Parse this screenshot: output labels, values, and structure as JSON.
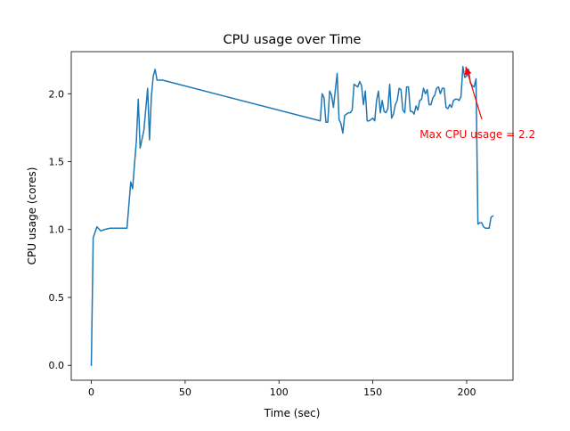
{
  "chart_data": {
    "type": "line",
    "title": "CPU usage over Time",
    "xlabel": "Time (sec)",
    "ylabel": "CPU usage (cores)",
    "xlim": [
      -10.7,
      224.7
    ],
    "ylim": [
      -0.11,
      2.31
    ],
    "x_ticks": [
      0,
      50,
      100,
      150,
      200
    ],
    "y_ticks": [
      0.0,
      0.5,
      1.0,
      1.5,
      2.0
    ],
    "x_tick_labels": [
      "0",
      "50",
      "100",
      "150",
      "200"
    ],
    "y_tick_labels": [
      "0.0",
      "0.5",
      "1.0",
      "1.5",
      "2.0"
    ],
    "grid": false,
    "series": [
      {
        "color": "#1f77b4",
        "x": [
          0,
          1,
          3,
          5,
          7,
          10,
          14,
          18,
          19,
          20,
          21,
          22,
          23,
          24,
          25,
          26,
          28,
          30,
          31,
          32,
          33,
          34,
          35,
          37,
          38,
          122,
          123,
          124,
          125,
          126,
          127,
          128,
          129,
          131,
          132,
          133,
          134,
          135,
          136,
          137,
          138,
          139,
          140,
          142,
          143,
          144,
          145,
          146,
          147,
          148,
          149,
          150,
          151,
          152,
          153,
          154,
          155,
          156,
          157,
          158,
          159,
          160,
          161,
          162,
          163,
          164,
          165,
          166,
          167,
          168,
          169,
          170,
          171,
          172,
          173,
          174,
          175,
          176,
          177,
          178,
          179,
          180,
          181,
          182,
          183,
          184,
          185,
          186,
          187,
          188,
          189,
          190,
          191,
          192,
          193,
          194,
          195,
          196,
          197,
          198,
          199,
          200,
          201,
          202,
          203,
          204,
          205,
          206,
          207,
          208,
          209,
          210,
          211,
          212,
          213,
          214
        ],
        "y": [
          0.0,
          0.94,
          1.02,
          0.99,
          1.0,
          1.01,
          1.01,
          1.01,
          1.01,
          1.18,
          1.35,
          1.3,
          1.48,
          1.65,
          1.96,
          1.6,
          1.73,
          2.04,
          1.66,
          1.98,
          2.13,
          2.18,
          2.1,
          2.1,
          2.1,
          1.8,
          2.0,
          1.97,
          1.79,
          1.79,
          2.02,
          1.99,
          1.9,
          2.15,
          1.81,
          1.78,
          1.71,
          1.84,
          1.85,
          1.86,
          1.86,
          1.88,
          2.07,
          2.05,
          2.09,
          2.06,
          1.92,
          2.02,
          1.8,
          1.8,
          1.81,
          1.82,
          1.8,
          1.95,
          2.02,
          1.86,
          1.95,
          1.87,
          1.86,
          1.89,
          2.07,
          1.82,
          1.85,
          1.92,
          1.95,
          2.04,
          2.03,
          1.88,
          1.86,
          2.05,
          2.05,
          1.87,
          1.87,
          1.85,
          1.91,
          1.88,
          1.95,
          1.96,
          2.04,
          2.0,
          2.03,
          1.92,
          1.92,
          1.97,
          1.99,
          2.04,
          2.05,
          2.0,
          2.04,
          2.04,
          1.9,
          1.89,
          1.92,
          1.9,
          1.95,
          1.96,
          1.96,
          1.95,
          1.98,
          2.2,
          2.12,
          2.13,
          2.18,
          2.08,
          2.06,
          2.05,
          2.11,
          1.04,
          1.05,
          1.05,
          1.02,
          1.01,
          1.01,
          1.01,
          1.09,
          1.1
        ]
      }
    ],
    "annotations": [
      {
        "text": "Max CPU usage = 2.2",
        "color": "#ff0000",
        "xy": [
          199.5,
          2.2
        ],
        "xytext": [
          175.0,
          1.7
        ]
      }
    ]
  }
}
